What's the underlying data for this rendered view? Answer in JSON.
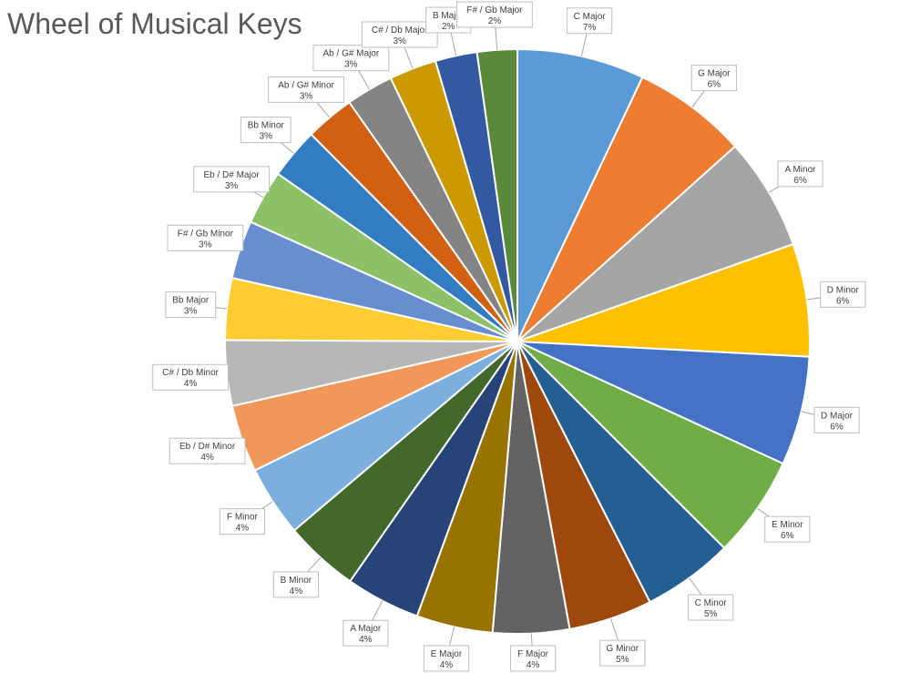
{
  "chart_data": {
    "type": "pie",
    "title": "Wheel of Musical Keys",
    "slices": [
      {
        "label": "C Major",
        "percent_label": "7%",
        "value": 7.0,
        "color": "#5B9BD5"
      },
      {
        "label": "G Major",
        "percent_label": "6%",
        "value": 6.3,
        "color": "#ED7D31"
      },
      {
        "label": "A Minor",
        "percent_label": "6%",
        "value": 6.2,
        "color": "#A5A5A5"
      },
      {
        "label": "D Minor",
        "percent_label": "6%",
        "value": 6.2,
        "color": "#FFC000"
      },
      {
        "label": "D Major",
        "percent_label": "6%",
        "value": 6.0,
        "color": "#4472C4"
      },
      {
        "label": "E Minor",
        "percent_label": "6%",
        "value": 5.6,
        "color": "#70AD47"
      },
      {
        "label": "C Minor",
        "percent_label": "5%",
        "value": 5.0,
        "color": "#255E91"
      },
      {
        "label": "G Minor",
        "percent_label": "5%",
        "value": 4.6,
        "color": "#9E480E"
      },
      {
        "label": "F Major",
        "percent_label": "4%",
        "value": 4.2,
        "color": "#636363"
      },
      {
        "label": "E Major",
        "percent_label": "4%",
        "value": 4.2,
        "color": "#997300"
      },
      {
        "label": "A Major",
        "percent_label": "4%",
        "value": 4.1,
        "color": "#264478"
      },
      {
        "label": "B Minor",
        "percent_label": "4%",
        "value": 4.1,
        "color": "#43682B"
      },
      {
        "label": "F Minor",
        "percent_label": "4%",
        "value": 3.9,
        "color": "#7CAFDD"
      },
      {
        "label": "Eb / D# Minor",
        "percent_label": "4%",
        "value": 3.7,
        "color": "#F1975A"
      },
      {
        "label": "C# / Db Minor",
        "percent_label": "4%",
        "value": 3.6,
        "color": "#B7B7B7"
      },
      {
        "label": "Bb Major",
        "percent_label": "3%",
        "value": 3.4,
        "color": "#FFCD33"
      },
      {
        "label": "F# / Gb Minor",
        "percent_label": "3%",
        "value": 3.2,
        "color": "#698ED0"
      },
      {
        "label": "Eb / D# Major",
        "percent_label": "3%",
        "value": 3.0,
        "color": "#8CC168"
      },
      {
        "label": "Bb Minor",
        "percent_label": "3%",
        "value": 2.8,
        "color": "#327DC2"
      },
      {
        "label": "Ab / G# Minor",
        "percent_label": "3%",
        "value": 2.7,
        "color": "#D26012"
      },
      {
        "label": "Ab / G# Major",
        "percent_label": "3%",
        "value": 2.6,
        "color": "#848484"
      },
      {
        "label": "C# / Db Major",
        "percent_label": "3%",
        "value": 2.6,
        "color": "#CC9A00"
      },
      {
        "label": "B Major",
        "percent_label": "2%",
        "value": 2.3,
        "color": "#335AA1"
      },
      {
        "label": "F# / Gb Major",
        "percent_label": "2%",
        "value": 2.2,
        "color": "#5A8A39"
      }
    ]
  }
}
